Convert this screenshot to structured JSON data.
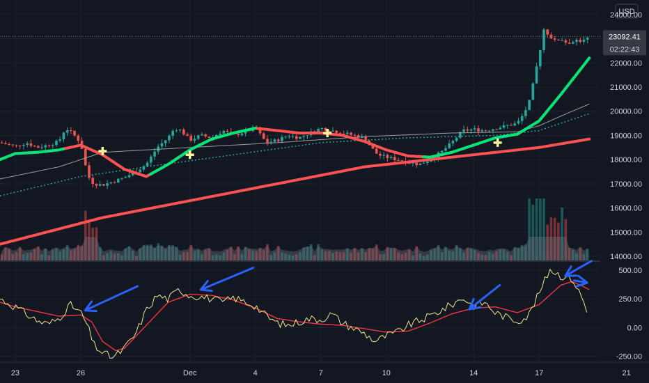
{
  "currency_label": "USD",
  "price_badge": {
    "price": "23092.41",
    "countdown": "02:22:43",
    "color": "#363a45"
  },
  "colors": {
    "background": "#131722",
    "up": "#26a69a",
    "down": "#ef5350",
    "ema_up": "#00e676",
    "ema_down": "#ff5252",
    "long_ma": "#ff5252",
    "ma_thin": "#9e9e9e",
    "dotted_ma": "#26a69a",
    "volume_area": "#787b86",
    "oscillator": "#f0e68c",
    "signal": "#f23645",
    "arrow": "#2962ff",
    "marker": "#fff59d"
  },
  "chart_data": [
    {
      "type": "candlestick",
      "currency": "USD",
      "y_ticks": [
        "24000.00",
        "23000.00",
        "22000.00",
        "21000.00",
        "20000.00",
        "19000.00",
        "18000.00",
        "17000.00",
        "16000.00",
        "15000.00",
        "14000.00"
      ],
      "ylim": [
        13800,
        24600
      ],
      "x_ticks": [
        {
          "label": "23",
          "day": 0
        },
        {
          "label": "26",
          "day": 3
        },
        {
          "label": "Dec",
          "day": 8
        },
        {
          "label": "4",
          "day": 11
        },
        {
          "label": "7",
          "day": 14
        },
        {
          "label": "10",
          "day": 17
        },
        {
          "label": "14",
          "day": 21
        },
        {
          "label": "17",
          "day": 24
        },
        {
          "label": "21",
          "day": 28
        }
      ],
      "xlim": [
        -0.7,
        26.8
      ],
      "close_path": [
        [
          -0.7,
          18700
        ],
        [
          0,
          18550
        ],
        [
          0.5,
          18700
        ],
        [
          1,
          18500
        ],
        [
          1.5,
          18600
        ],
        [
          2,
          18750
        ],
        [
          2.3,
          19300
        ],
        [
          2.6,
          19100
        ],
        [
          3,
          18700
        ],
        [
          3.2,
          17800
        ],
        [
          3.4,
          17200
        ],
        [
          3.6,
          17000
        ],
        [
          4,
          16950
        ],
        [
          4.5,
          17100
        ],
        [
          5,
          17250
        ],
        [
          5.5,
          17500
        ],
        [
          6,
          17800
        ],
        [
          6.5,
          18500
        ],
        [
          7,
          18900
        ],
        [
          7.3,
          19300
        ],
        [
          7.6,
          19200
        ],
        [
          8,
          18800
        ],
        [
          8.5,
          19000
        ],
        [
          9,
          18900
        ],
        [
          9.5,
          19200
        ],
        [
          10,
          19000
        ],
        [
          10.5,
          19150
        ],
        [
          11,
          19300
        ],
        [
          11.5,
          18700
        ],
        [
          12,
          18800
        ],
        [
          12.5,
          19000
        ],
        [
          13,
          18900
        ],
        [
          13.5,
          19100
        ],
        [
          14,
          19300
        ],
        [
          14.5,
          19200
        ],
        [
          15,
          19100
        ],
        [
          15.5,
          19000
        ],
        [
          16,
          18900
        ],
        [
          16.3,
          18500
        ],
        [
          16.6,
          18200
        ],
        [
          17,
          18100
        ],
        [
          17.5,
          18000
        ],
        [
          18,
          17900
        ],
        [
          18.5,
          17800
        ],
        [
          19,
          18000
        ],
        [
          19.5,
          18300
        ],
        [
          20,
          18700
        ],
        [
          20.5,
          19200
        ],
        [
          21,
          19250
        ],
        [
          21.5,
          19200
        ],
        [
          22,
          19300
        ],
        [
          22.5,
          19400
        ],
        [
          23,
          19500
        ],
        [
          23.3,
          19900
        ],
        [
          23.6,
          20500
        ],
        [
          23.8,
          21500
        ],
        [
          24,
          22300
        ],
        [
          24.2,
          23400
        ],
        [
          24.4,
          23200
        ],
        [
          24.7,
          22900
        ],
        [
          25,
          23000
        ],
        [
          25.3,
          22800
        ],
        [
          25.6,
          22950
        ],
        [
          26,
          22900
        ],
        [
          26.3,
          23050
        ]
      ],
      "ema_fast": [
        [
          -0.7,
          18000
        ],
        [
          0,
          18250
        ],
        [
          1,
          18300
        ],
        [
          2,
          18400
        ],
        [
          3,
          18600
        ],
        [
          4,
          18200
        ],
        [
          5,
          17600
        ],
        [
          6,
          17300
        ],
        [
          7,
          17800
        ],
        [
          8,
          18400
        ],
        [
          9,
          18850
        ],
        [
          10,
          19100
        ],
        [
          11,
          19300
        ],
        [
          12,
          19200
        ],
        [
          13,
          19100
        ],
        [
          14,
          19100
        ],
        [
          15,
          19000
        ],
        [
          16,
          18750
        ],
        [
          17,
          18400
        ],
        [
          18,
          18150
        ],
        [
          19,
          18100
        ],
        [
          20,
          18300
        ],
        [
          21,
          18600
        ],
        [
          22,
          18900
        ],
        [
          23,
          19050
        ],
        [
          24,
          19600
        ],
        [
          25,
          20700
        ],
        [
          26.3,
          22200
        ]
      ],
      "ema_fast_green_segments": [
        [
          -0.7,
          2.2
        ],
        [
          6.2,
          11.0
        ],
        [
          18.7,
          26.3
        ]
      ],
      "long_ma": [
        [
          -0.7,
          14500
        ],
        [
          4,
          15600
        ],
        [
          8,
          16300
        ],
        [
          12,
          17000
        ],
        [
          16,
          17700
        ],
        [
          20,
          18100
        ],
        [
          24,
          18500
        ],
        [
          26.3,
          18850
        ]
      ],
      "ma_thin": [
        [
          -0.7,
          17200
        ],
        [
          2,
          17700
        ],
        [
          3,
          18000
        ],
        [
          4,
          18300
        ],
        [
          8,
          18500
        ],
        [
          12,
          18700
        ],
        [
          16,
          18950
        ],
        [
          20,
          19100
        ],
        [
          23,
          19150
        ],
        [
          24,
          19400
        ],
        [
          25,
          19800
        ],
        [
          26.3,
          20300
        ]
      ],
      "ma_dotted": [
        [
          -0.7,
          16500
        ],
        [
          3,
          17300
        ],
        [
          6,
          17700
        ],
        [
          10,
          18200
        ],
        [
          14,
          18700
        ],
        [
          18,
          18900
        ],
        [
          22,
          19000
        ],
        [
          24,
          19200
        ],
        [
          26.3,
          19900
        ]
      ],
      "cross_markers": [
        [
          4,
          18350
        ],
        [
          8,
          18200
        ],
        [
          14.3,
          19100
        ],
        [
          22.1,
          18700
        ]
      ]
    },
    {
      "type": "line",
      "name": "oscillator",
      "y_ticks": [
        "500.00",
        "250.00",
        "0.00",
        "-250.00"
      ],
      "ylim": [
        -300,
        560
      ],
      "series_osc": [
        [
          -0.7,
          250
        ],
        [
          0,
          180
        ],
        [
          0.5,
          120
        ],
        [
          1,
          60
        ],
        [
          1.5,
          30
        ],
        [
          2,
          80
        ],
        [
          2.5,
          200
        ],
        [
          3,
          130
        ],
        [
          3.3,
          20
        ],
        [
          3.6,
          -150
        ],
        [
          4,
          -220
        ],
        [
          4.5,
          -260
        ],
        [
          5,
          -180
        ],
        [
          5.5,
          -60
        ],
        [
          6,
          150
        ],
        [
          6.5,
          280
        ],
        [
          7,
          250
        ],
        [
          7.5,
          330
        ],
        [
          8,
          280
        ],
        [
          8.5,
          270
        ],
        [
          9,
          250
        ],
        [
          9.5,
          220
        ],
        [
          10,
          260
        ],
        [
          11,
          190
        ],
        [
          11.5,
          100
        ],
        [
          12,
          40
        ],
        [
          12.5,
          20
        ],
        [
          13,
          50
        ],
        [
          13.5,
          80
        ],
        [
          14,
          70
        ],
        [
          14.5,
          120
        ],
        [
          15,
          40
        ],
        [
          16,
          -50
        ],
        [
          16.5,
          -120
        ],
        [
          17,
          -70
        ],
        [
          17.5,
          -40
        ],
        [
          18,
          20
        ],
        [
          18.5,
          60
        ],
        [
          19,
          100
        ],
        [
          19.5,
          150
        ],
        [
          20,
          200
        ],
        [
          20.5,
          260
        ],
        [
          21,
          190
        ],
        [
          21.5,
          220
        ],
        [
          22,
          130
        ],
        [
          22.5,
          90
        ],
        [
          23,
          60
        ],
        [
          23.5,
          100
        ],
        [
          24,
          300
        ],
        [
          24.5,
          510
        ],
        [
          25,
          450
        ],
        [
          25.5,
          430
        ],
        [
          26,
          250
        ],
        [
          26.3,
          60
        ]
      ],
      "series_signal": [
        [
          -0.7,
          220
        ],
        [
          0,
          180
        ],
        [
          1,
          140
        ],
        [
          2,
          100
        ],
        [
          3,
          110
        ],
        [
          3.5,
          50
        ],
        [
          4,
          -120
        ],
        [
          4.6,
          -200
        ],
        [
          5,
          -180
        ],
        [
          6,
          20
        ],
        [
          7,
          220
        ],
        [
          8,
          290
        ],
        [
          9,
          280
        ],
        [
          10,
          240
        ],
        [
          11,
          170
        ],
        [
          12,
          80
        ],
        [
          13,
          50
        ],
        [
          14,
          30
        ],
        [
          15,
          20
        ],
        [
          16,
          -10
        ],
        [
          17,
          -40
        ],
        [
          18,
          -30
        ],
        [
          19,
          40
        ],
        [
          20,
          120
        ],
        [
          21,
          170
        ],
        [
          22,
          180
        ],
        [
          23,
          130
        ],
        [
          24,
          200
        ],
        [
          25,
          370
        ],
        [
          25.5,
          400
        ],
        [
          26,
          360
        ],
        [
          26.3,
          330
        ]
      ],
      "arrows": [
        {
          "from": [
            5.6,
            360
          ],
          "to": [
            3.2,
            150
          ]
        },
        {
          "from": [
            10.9,
            520
          ],
          "to": [
            8.5,
            330
          ]
        },
        {
          "from": [
            22.2,
            370
          ],
          "to": [
            20.8,
            160
          ]
        },
        {
          "from": [
            26.4,
            580
          ],
          "to": [
            25.2,
            450
          ]
        },
        {
          "from": [
            25.6,
            410
          ],
          "to": [
            26.2,
            390
          ]
        }
      ]
    }
  ]
}
